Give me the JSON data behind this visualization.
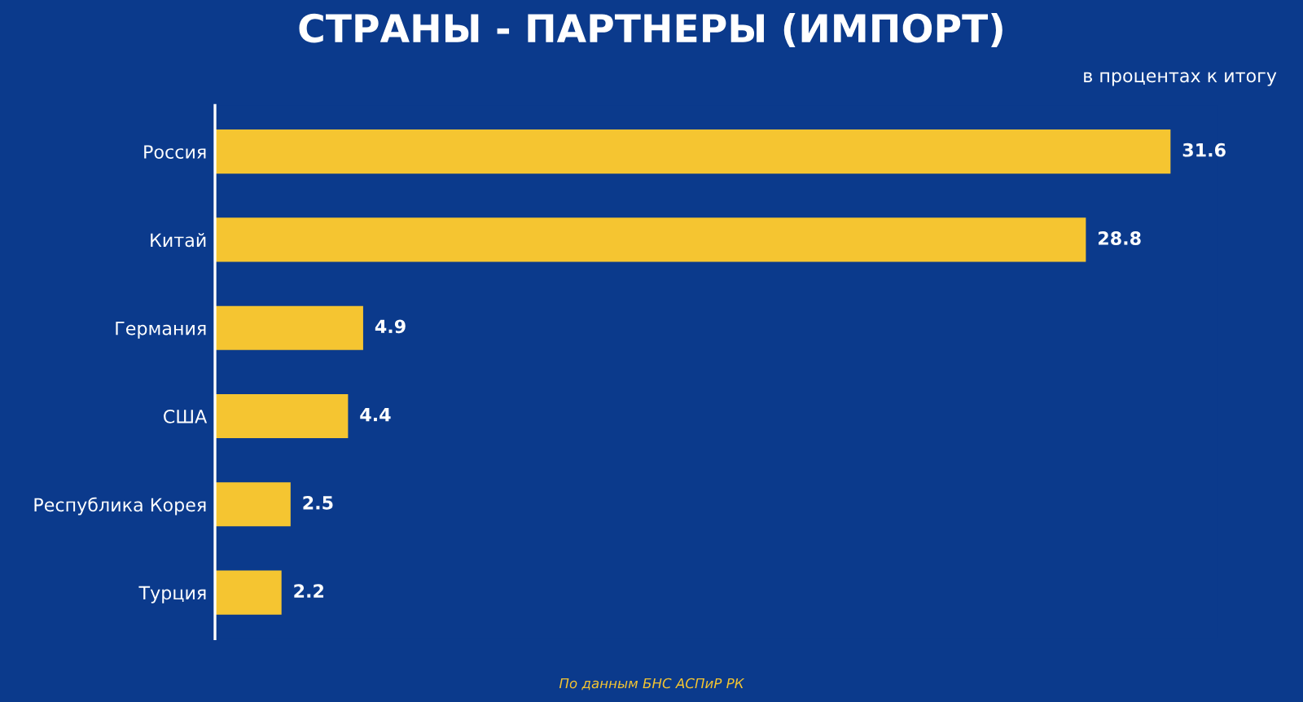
{
  "chart_data": {
    "type": "bar",
    "orientation": "horizontal",
    "title": "СТРАНЫ - ПАРТНЕРЫ (ИМПОРТ)",
    "subtitle": "в процентах к итогу",
    "categories": [
      "Россия",
      "Китай",
      "Германия",
      "США",
      "Республика Корея",
      "Турция"
    ],
    "values": [
      31.6,
      28.8,
      4.9,
      4.4,
      2.5,
      2.2
    ],
    "color": "#f5c531",
    "data_labels": true,
    "grid": false,
    "legend": false,
    "annotations": [
      "По данным БНС АСПиР РК"
    ]
  }
}
